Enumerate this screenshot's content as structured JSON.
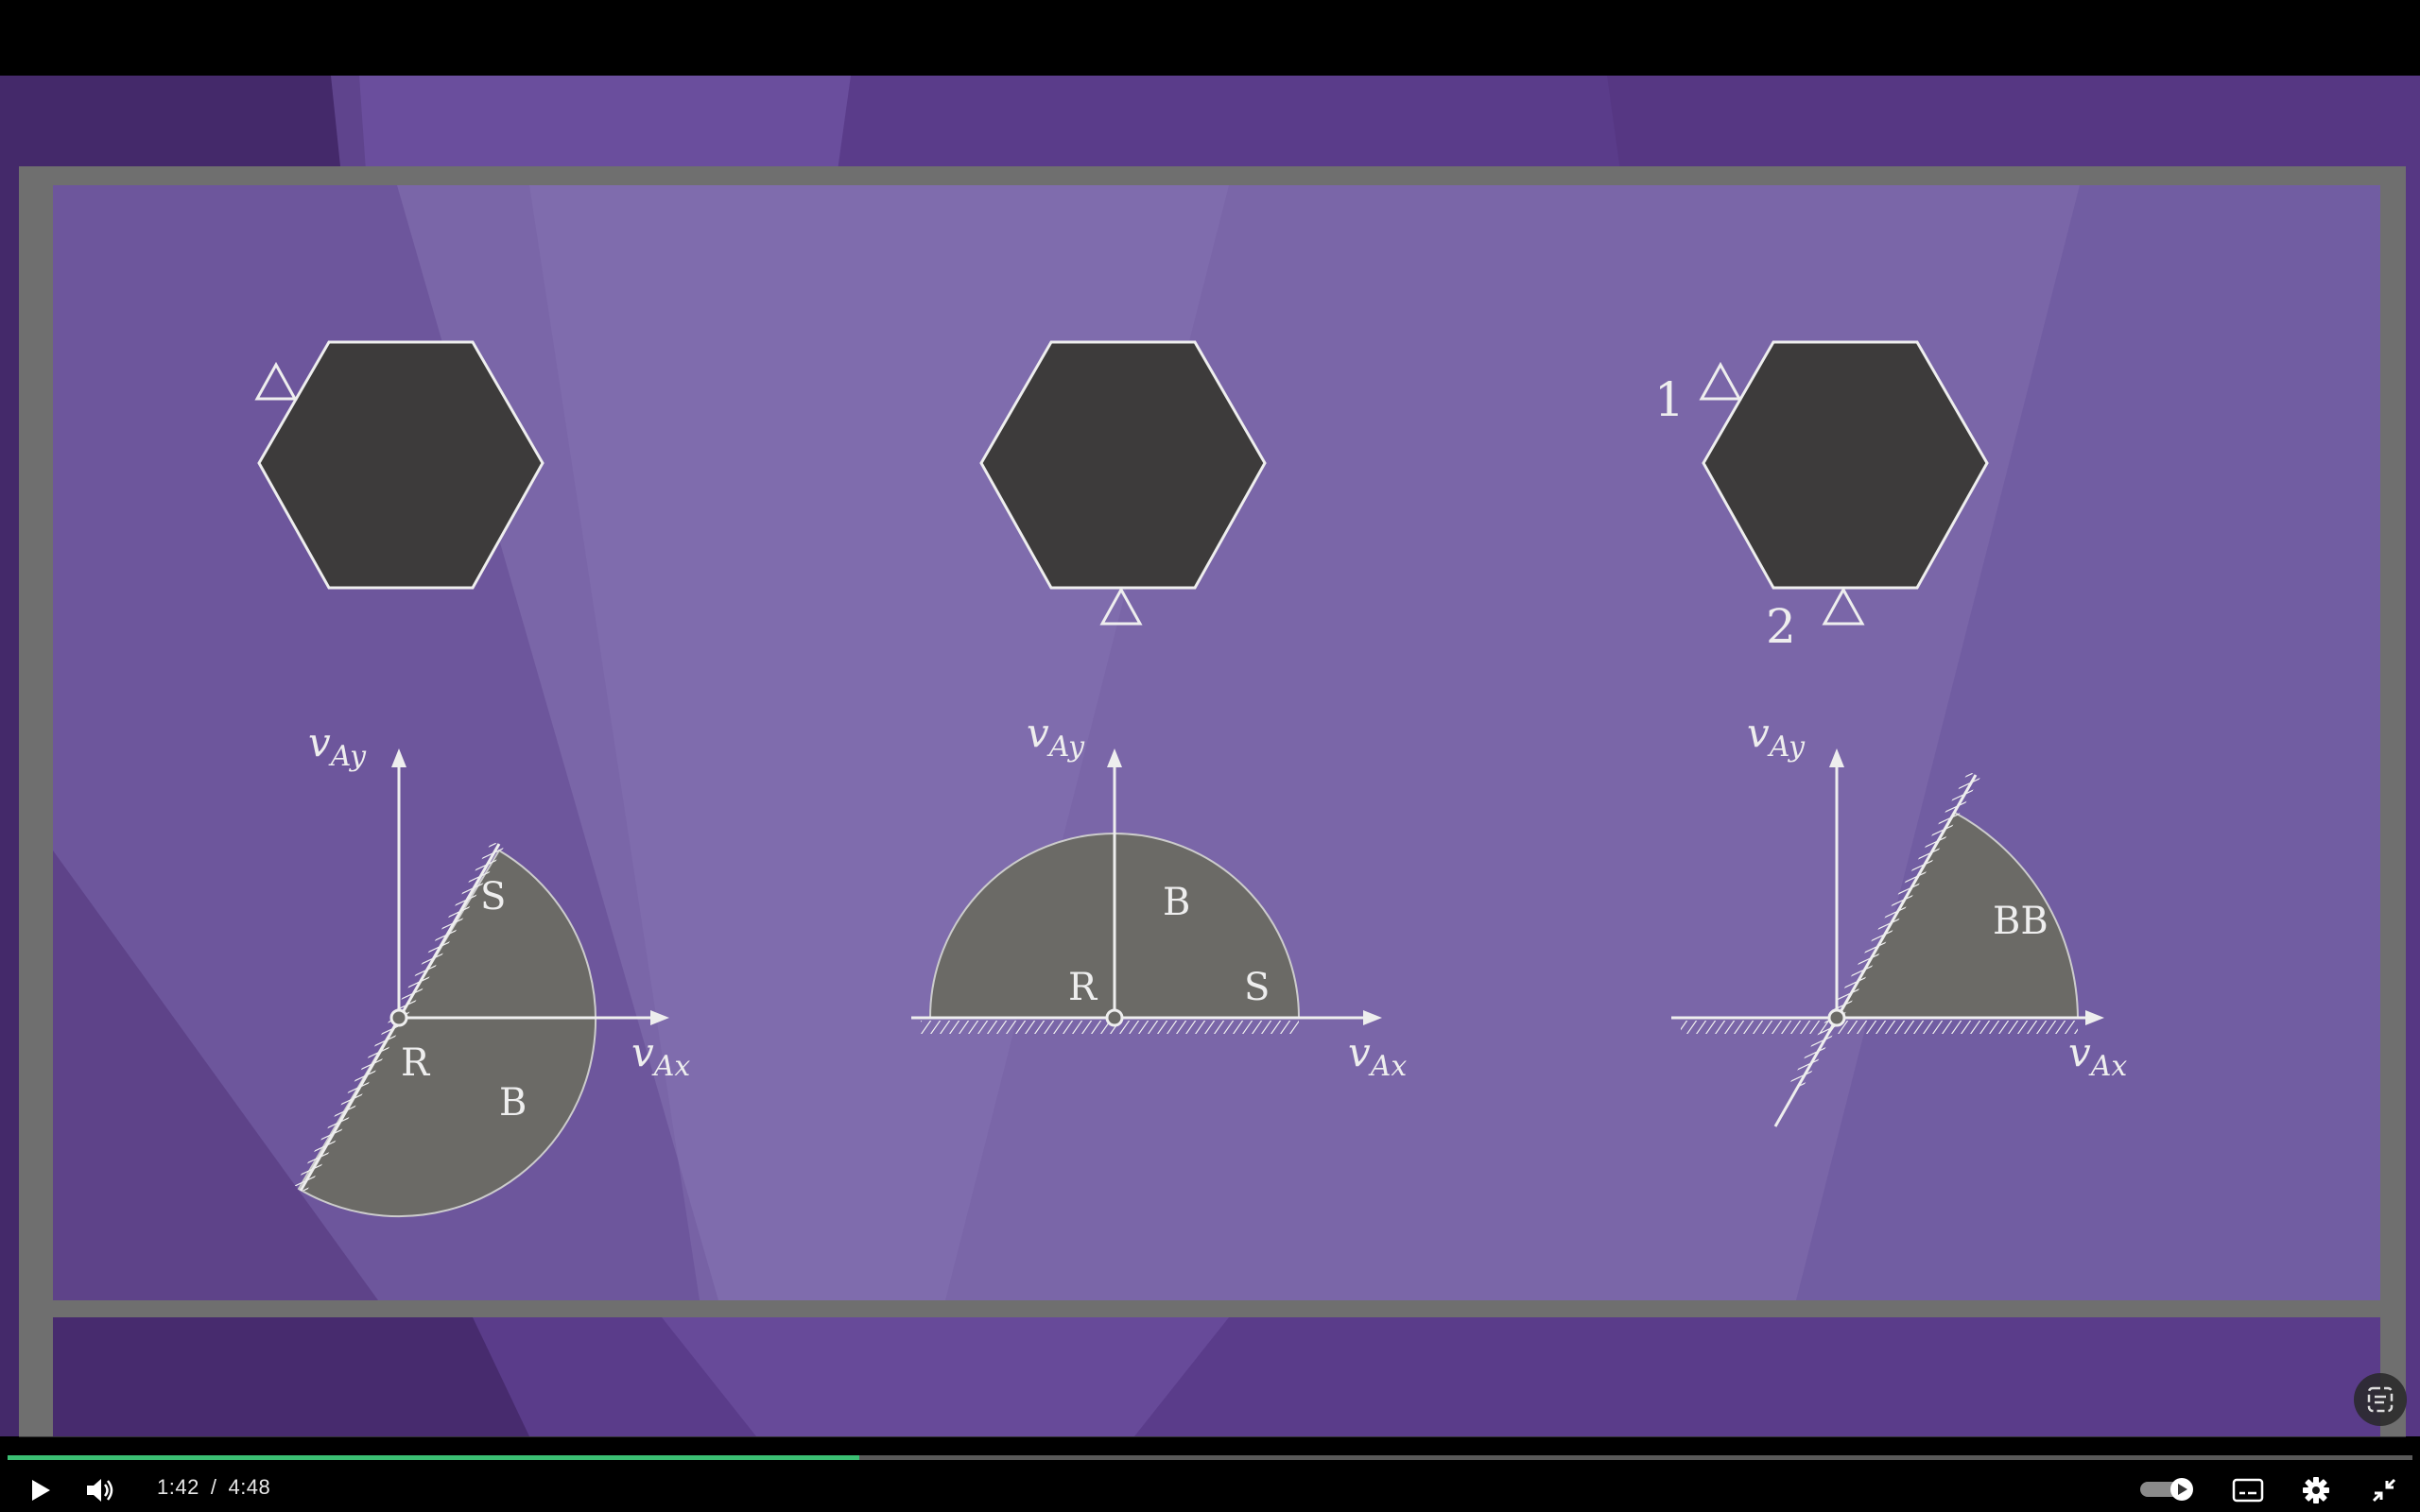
{
  "player": {
    "current_time": "1:42",
    "separator": "/",
    "duration": "4:48",
    "progress": 0.354
  },
  "slide": {
    "panels": [
      {
        "top_labels": [],
        "region_labels": [
          "S",
          "R",
          "B"
        ],
        "axis_x": "v",
        "axis_x_sub": "Ax",
        "axis_y": "v",
        "axis_y_sub": "Ay"
      },
      {
        "top_labels": [],
        "region_labels": [
          "B",
          "R",
          "S"
        ],
        "axis_x": "v",
        "axis_x_sub": "Ax",
        "axis_y": "v",
        "axis_y_sub": "Ay"
      },
      {
        "top_labels": [
          "1",
          "2"
        ],
        "region_labels": [
          "BB"
        ],
        "axis_x": "v",
        "axis_x_sub": "Ax",
        "axis_y": "v",
        "axis_y_sub": "Ay"
      }
    ]
  },
  "colors": {
    "bg_purple": "#6b4f9a",
    "board": "#7a66a8",
    "hexagon": "#3d3b3b",
    "region": "#6b6a66",
    "line": "#eeeeee",
    "frame": "#6a6a6a",
    "progress": "#3bbf73"
  },
  "icons": {
    "play": "play-icon",
    "volume": "volume-icon",
    "autoplay": "autoplay-toggle",
    "captions": "captions-icon",
    "settings": "gear-icon",
    "exit_fullscreen": "exit-fullscreen-icon",
    "miniplayer": "miniplayer-icon"
  }
}
